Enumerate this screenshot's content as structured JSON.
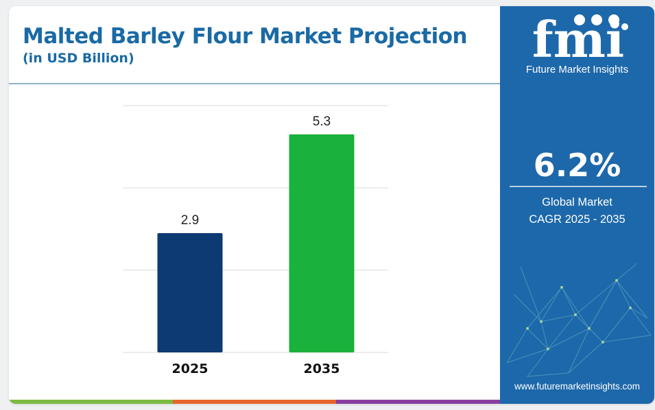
{
  "header": {
    "title": "Malted Barley Flour Market Projection",
    "subtitle": "(in USD Billion)"
  },
  "chart_data": {
    "type": "bar",
    "categories": [
      "2025",
      "2035"
    ],
    "values": [
      2.9,
      5.3
    ],
    "value_labels": [
      "2.9",
      "5.3"
    ],
    "bar_colors": [
      "#0d3a72",
      "#1ab13c"
    ],
    "ylim": [
      0,
      6
    ],
    "grid": true
  },
  "sidebar": {
    "logo_text": "fmi",
    "brand_name": "Future Market Insights",
    "cagr_value": "6.2%",
    "cagr_label_line1": "Global Market",
    "cagr_label_line2": "CAGR 2025 - 2035",
    "website": "www.futuremarketinsights.com"
  },
  "colors": {
    "title": "#1a6aa5",
    "sidebar_bg": "#1d68aa",
    "footer_strip": [
      "#7cb942",
      "#e8642c",
      "#8a3fa0"
    ]
  }
}
